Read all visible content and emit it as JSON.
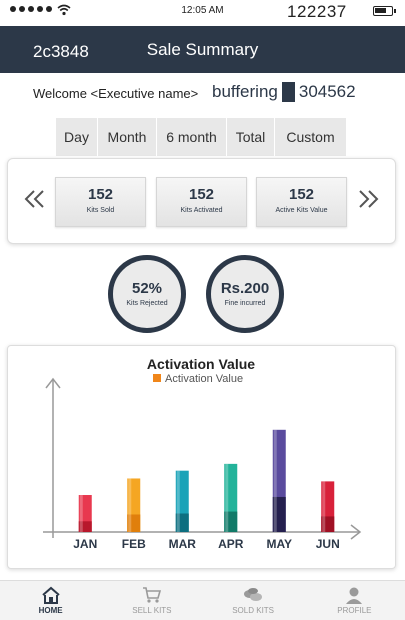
{
  "status_bar": {
    "time": "12:05 AM",
    "number": "122237",
    "icons": [
      "signal-dots",
      "wifi-icon",
      "battery-icon"
    ]
  },
  "header": {
    "code": "2c3848",
    "title": "Sale Summary",
    "background": "#2c3848"
  },
  "welcome": {
    "text": "Welcome <Executive name>",
    "buffering": "buffering",
    "number": "304562"
  },
  "period_tabs": [
    "Day",
    "Month",
    "6 month",
    "Total",
    "Custom"
  ],
  "stats": [
    {
      "value": "152",
      "label": "Kits Sold"
    },
    {
      "value": "152",
      "label": "Kits Activated"
    },
    {
      "value": "152",
      "label": "Active Kits Value"
    }
  ],
  "circles": [
    {
      "value": "52%",
      "label": "Kits Rejected"
    },
    {
      "value": "Rs.200",
      "label": "Fine incurred"
    }
  ],
  "chart_data": {
    "type": "bar",
    "title": "Activation Value",
    "legend": "Activation Value",
    "legend_color": "#f0861a",
    "categories": [
      "JAN",
      "FEB",
      "MAR",
      "APR",
      "MAY",
      "JUN"
    ],
    "values": [
      38,
      55,
      63,
      70,
      105,
      52
    ],
    "dark_values": [
      11,
      18,
      19,
      21,
      36,
      16
    ],
    "colors": [
      "#e8384f",
      "#f5a623",
      "#1aa3b8",
      "#23b39a",
      "#5a4b9e",
      "#d8213a"
    ],
    "dark_colors": [
      "#b8182c",
      "#e07f0c",
      "#0d6f80",
      "#117a68",
      "#25204f",
      "#a01024"
    ],
    "ylim": [
      0,
      150
    ]
  },
  "bottom_nav": [
    {
      "label": "HOME",
      "icon": "home-icon",
      "active": true
    },
    {
      "label": "SELL KITS",
      "icon": "cart-icon",
      "active": false
    },
    {
      "label": "SOLD KITS",
      "icon": "coins-icon",
      "active": false
    },
    {
      "label": "PROFILE",
      "icon": "profile-icon",
      "active": false
    }
  ]
}
